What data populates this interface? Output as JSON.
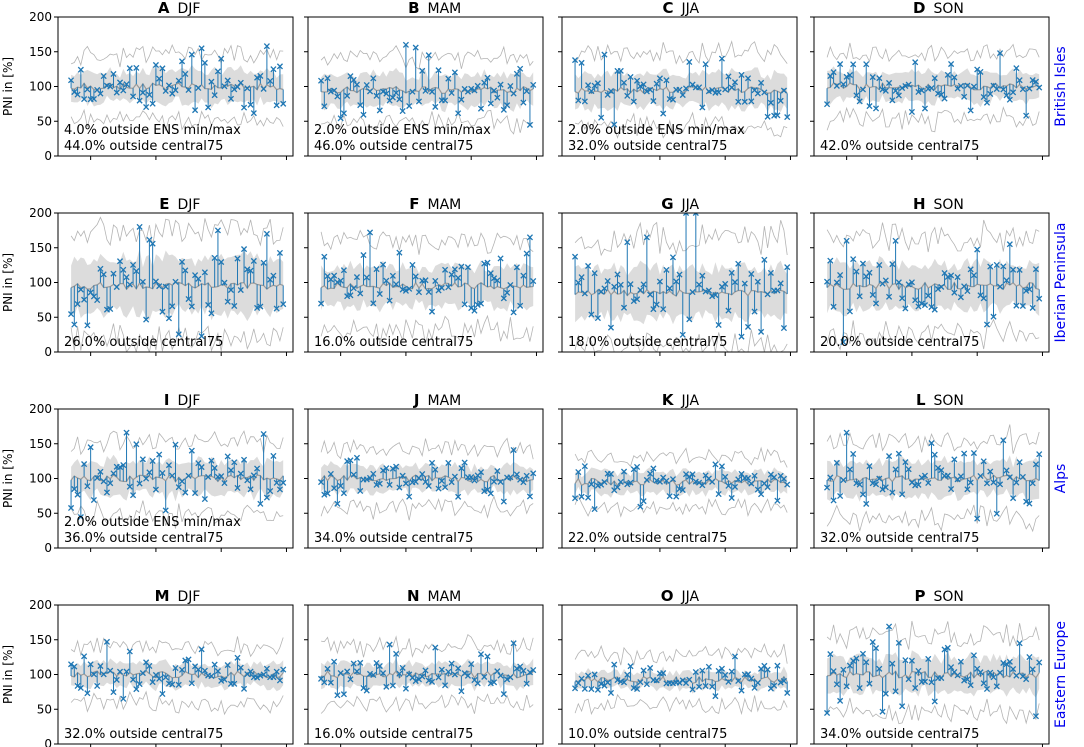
{
  "figure": {
    "ylabel": "PNI in [%]",
    "legend_terms": {
      "ens_minmax": "outside ENS min/max",
      "central75": "outside central75"
    },
    "colors": {
      "obs": "#1f77b4",
      "band": "#dcdcdc",
      "median": "#9a9a9a",
      "envelope": "#b4b4b4",
      "region_label": "#0000ee"
    }
  },
  "chart_data": [
    {
      "type": "line",
      "panel": "A",
      "season": "DJF",
      "region": "British Isles",
      "xlim": [
        1950,
        2022
      ],
      "ylim": [
        0,
        200
      ],
      "xticks": [
        1960,
        1980,
        2000,
        2020
      ],
      "yticks": [
        0,
        50,
        100,
        150,
        200
      ],
      "ann_lines": [
        "4.0% outside ENS min/max",
        "44.0% outside central75"
      ],
      "mean": 100,
      "amp": 22,
      "spread": 35,
      "seed": 11,
      "peaks": [
        [
          1980,
          131
        ],
        [
          1991,
          146
        ],
        [
          1994,
          155
        ],
        [
          2014,
          158
        ]
      ]
    },
    {
      "type": "line",
      "panel": "B",
      "season": "MAM",
      "region": "British Isles",
      "xlim": [
        1950,
        2022
      ],
      "ylim": [
        0,
        200
      ],
      "xticks": [
        1960,
        1980,
        2000,
        2020
      ],
      "yticks": [
        0,
        50,
        100,
        150,
        200
      ],
      "ann_lines": [
        "2.0% outside ENS min/max",
        "46.0% outside central75"
      ],
      "mean": 95,
      "amp": 22,
      "spread": 35,
      "seed": 23,
      "peaks": [
        [
          1980,
          160
        ],
        [
          1983,
          156
        ],
        [
          1987,
          145
        ],
        [
          1953,
          58
        ]
      ]
    },
    {
      "type": "line",
      "panel": "C",
      "season": "JJA",
      "region": "British Isles",
      "xlim": [
        1950,
        2022
      ],
      "ylim": [
        0,
        200
      ],
      "xticks": [
        1960,
        1980,
        2000,
        2020
      ],
      "yticks": [
        0,
        50,
        100,
        150,
        200
      ],
      "ann_lines": [
        "2.0% outside ENS min/max",
        "32.0% outside central75"
      ],
      "mean": 95,
      "amp": 24,
      "spread": 40,
      "seed": 37,
      "peaks": [
        [
          1954,
          138
        ],
        [
          1956,
          134
        ],
        [
          2015,
          58
        ]
      ]
    },
    {
      "type": "line",
      "panel": "D",
      "season": "SON",
      "region": "British Isles",
      "xlim": [
        1950,
        2022
      ],
      "ylim": [
        0,
        200
      ],
      "xticks": [
        1960,
        1980,
        2000,
        2020
      ],
      "yticks": [
        0,
        50,
        100,
        150,
        200
      ],
      "ann_lines": [
        "42.0% outside central75"
      ],
      "mean": 100,
      "amp": 20,
      "spread": 38,
      "seed": 41,
      "peaks": [
        [
          2007,
          148
        ],
        [
          2015,
          58
        ]
      ]
    },
    {
      "type": "line",
      "panel": "E",
      "season": "DJF",
      "region": "Iberian Peninsula",
      "xlim": [
        1950,
        2022
      ],
      "ylim": [
        0,
        200
      ],
      "xticks": [
        1960,
        1980,
        2000,
        2020
      ],
      "yticks": [
        0,
        50,
        100,
        150,
        200
      ],
      "ann_lines": [
        "26.0% outside central75"
      ],
      "mean": 95,
      "amp": 40,
      "spread": 55,
      "seed": 53,
      "peaks": [
        [
          1975,
          180
        ],
        [
          1999,
          175
        ],
        [
          2014,
          170
        ]
      ]
    },
    {
      "type": "line",
      "panel": "F",
      "season": "MAM",
      "region": "Iberian Peninsula",
      "xlim": [
        1950,
        2022
      ],
      "ylim": [
        0,
        200
      ],
      "xticks": [
        1960,
        1980,
        2000,
        2020
      ],
      "yticks": [
        0,
        50,
        100,
        150,
        200
      ],
      "ann_lines": [
        "16.0% outside central75"
      ],
      "mean": 95,
      "amp": 28,
      "spread": 50,
      "seed": 61,
      "peaks": [
        [
          1969,
          172
        ],
        [
          2018,
          165
        ]
      ]
    },
    {
      "type": "line",
      "panel": "G",
      "season": "JJA",
      "region": "Iberian Peninsula",
      "xlim": [
        1950,
        2022
      ],
      "ylim": [
        0,
        200
      ],
      "xticks": [
        1960,
        1980,
        2000,
        2020
      ],
      "yticks": [
        0,
        50,
        100,
        150,
        200
      ],
      "ann_lines": [
        "18.0% outside central75"
      ],
      "mean": 85,
      "amp": 36,
      "spread": 60,
      "seed": 71,
      "peaks": [
        [
          1988,
          200
        ],
        [
          1991,
          200
        ],
        [
          1976,
          165
        ]
      ]
    },
    {
      "type": "line",
      "panel": "H",
      "season": "SON",
      "region": "Iberian Peninsula",
      "xlim": [
        1950,
        2022
      ],
      "ylim": [
        0,
        200
      ],
      "xticks": [
        1960,
        1980,
        2000,
        2020
      ],
      "yticks": [
        0,
        50,
        100,
        150,
        200
      ],
      "ann_lines": [
        "20.0% outside central75"
      ],
      "mean": 95,
      "amp": 32,
      "spread": 55,
      "seed": 83,
      "peaks": [
        [
          1960,
          160
        ],
        [
          1975,
          160
        ]
      ]
    },
    {
      "type": "line",
      "panel": "I",
      "season": "DJF",
      "region": "Alps",
      "xlim": [
        1950,
        2022
      ],
      "ylim": [
        0,
        200
      ],
      "xticks": [
        1960,
        1980,
        2000,
        2020
      ],
      "yticks": [
        0,
        50,
        100,
        150,
        200
      ],
      "ann_lines": [
        "2.0% outside ENS min/max",
        "36.0% outside central75"
      ],
      "mean": 100,
      "amp": 24,
      "spread": 40,
      "seed": 97,
      "peaks": [
        [
          1971,
          166
        ],
        [
          2013,
          164
        ],
        [
          1960,
          145
        ]
      ]
    },
    {
      "type": "line",
      "panel": "J",
      "season": "MAM",
      "region": "Alps",
      "xlim": [
        1950,
        2022
      ],
      "ylim": [
        0,
        200
      ],
      "xticks": [
        1960,
        1980,
        2000,
        2020
      ],
      "yticks": [
        0,
        50,
        100,
        150,
        200
      ],
      "ann_lines": [
        "34.0% outside central75"
      ],
      "mean": 100,
      "amp": 18,
      "spread": 35,
      "seed": 101,
      "peaks": [
        [
          2013,
          141
        ]
      ]
    },
    {
      "type": "line",
      "panel": "K",
      "season": "JJA",
      "region": "Alps",
      "xlim": [
        1950,
        2022
      ],
      "ylim": [
        0,
        200
      ],
      "xticks": [
        1960,
        1980,
        2000,
        2020
      ],
      "yticks": [
        0,
        50,
        100,
        150,
        200
      ],
      "ann_lines": [
        "22.0% outside central75"
      ],
      "mean": 95,
      "amp": 15,
      "spread": 30,
      "seed": 113,
      "peaks": [
        [
          1960,
          56
        ]
      ]
    },
    {
      "type": "line",
      "panel": "L",
      "season": "SON",
      "region": "Alps",
      "xlim": [
        1950,
        2022
      ],
      "ylim": [
        0,
        200
      ],
      "xticks": [
        1960,
        1980,
        2000,
        2020
      ],
      "yticks": [
        0,
        50,
        100,
        150,
        200
      ],
      "ann_lines": [
        "32.0% outside central75"
      ],
      "mean": 100,
      "amp": 24,
      "spread": 45,
      "seed": 127,
      "peaks": [
        [
          1960,
          166
        ],
        [
          2008,
          155
        ],
        [
          2019,
          135
        ]
      ]
    },
    {
      "type": "line",
      "panel": "M",
      "season": "DJF",
      "region": "Eastern Europe",
      "xlim": [
        1950,
        2022
      ],
      "ylim": [
        0,
        200
      ],
      "xticks": [
        1960,
        1980,
        2000,
        2020
      ],
      "yticks": [
        0,
        50,
        100,
        150,
        200
      ],
      "ann_lines": [
        "32.0% outside central75"
      ],
      "mean": 100,
      "amp": 16,
      "spread": 35,
      "seed": 131,
      "peaks": [
        [
          1965,
          147
        ],
        [
          1970,
          65
        ]
      ]
    },
    {
      "type": "line",
      "panel": "N",
      "season": "MAM",
      "region": "Eastern Europe",
      "xlim": [
        1950,
        2022
      ],
      "ylim": [
        0,
        200
      ],
      "xticks": [
        1960,
        1980,
        2000,
        2020
      ],
      "yticks": [
        0,
        50,
        100,
        150,
        200
      ],
      "ann_lines": [
        "16.0% outside central75"
      ],
      "mean": 100,
      "amp": 16,
      "spread": 35,
      "seed": 139,
      "peaks": [
        [
          2013,
          145
        ],
        [
          1975,
          143
        ]
      ]
    },
    {
      "type": "line",
      "panel": "O",
      "season": "JJA",
      "region": "Eastern Europe",
      "xlim": [
        1950,
        2022
      ],
      "ylim": [
        0,
        200
      ],
      "xticks": [
        1960,
        1980,
        2000,
        2020
      ],
      "yticks": [
        0,
        50,
        100,
        150,
        200
      ],
      "ann_lines": [
        "10.0% outside central75"
      ],
      "mean": 92,
      "amp": 12,
      "spread": 35,
      "seed": 149,
      "peaks": [
        [
          2003,
          126
        ]
      ]
    },
    {
      "type": "line",
      "panel": "P",
      "season": "SON",
      "region": "Eastern Europe",
      "xlim": [
        1950,
        2022
      ],
      "ylim": [
        0,
        200
      ],
      "xticks": [
        1960,
        1980,
        2000,
        2020
      ],
      "yticks": [
        0,
        50,
        100,
        150,
        200
      ],
      "ann_lines": [
        "34.0% outside central75"
      ],
      "mean": 100,
      "amp": 25,
      "spread": 45,
      "seed": 157,
      "peaks": [
        [
          1973,
          169
        ],
        [
          2013,
          145
        ],
        [
          2018,
          40
        ]
      ]
    }
  ]
}
